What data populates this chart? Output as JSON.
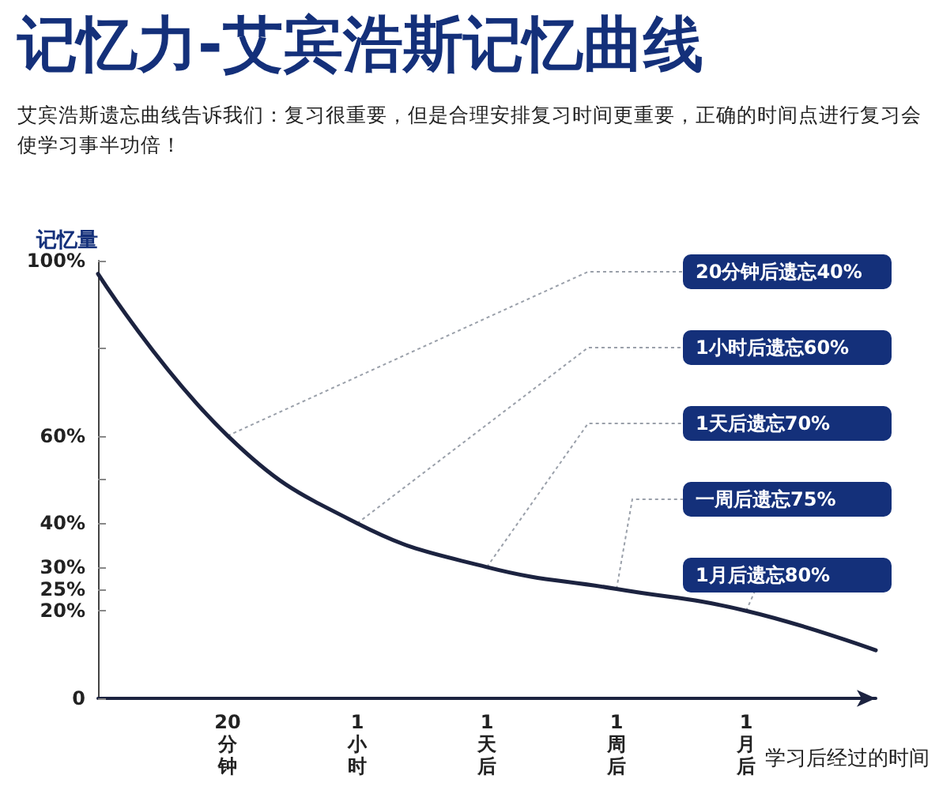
{
  "chart_data": {
    "type": "line",
    "title": "记忆力-艾宾浩斯记忆曲线",
    "subtitle": "艾宾浩斯遗忘曲线告诉我们：复习很重要，但是合理安排复习时间更重要，正确的时间点进行复习会使学习事半功倍！",
    "xlabel": "学习后经过的时间",
    "ylabel": "记忆量",
    "categories": [
      null,
      "20分钟",
      "1小时",
      "1天后",
      "1周后",
      "1月后",
      null
    ],
    "series": [
      {
        "color": "#1c2340",
        "values": [
          97,
          60,
          40,
          30,
          25,
          20,
          11
        ]
      }
    ],
    "ylim": [
      0,
      100
    ],
    "yticks": [
      0,
      {
        "value": 20,
        "label": "20%"
      },
      {
        "value": 25,
        "label": "25%"
      },
      {
        "value": 30,
        "label": "30%"
      },
      {
        "value": 40,
        "label": "40%"
      },
      {
        "value": 50,
        "label": null
      },
      {
        "value": 60,
        "label": "60%"
      },
      {
        "value": 80,
        "label": null
      },
      {
        "value": 100,
        "label": "100%"
      }
    ],
    "annotations": [
      {
        "text": "20分钟后遗忘40%",
        "x": "20分钟",
        "y": 60
      },
      {
        "text": "1小时后遗忘60%",
        "x": "1小时",
        "y": 40
      },
      {
        "text": "1天后遗忘70%",
        "x": "1天后",
        "y": 30
      },
      {
        "text": "一周后遗忘75%",
        "x": "1周后",
        "y": 25
      },
      {
        "text": "1月后遗忘80%",
        "x": "1月后",
        "y": 20
      }
    ],
    "grid": false,
    "marker": "none",
    "line_style": "solid"
  }
}
